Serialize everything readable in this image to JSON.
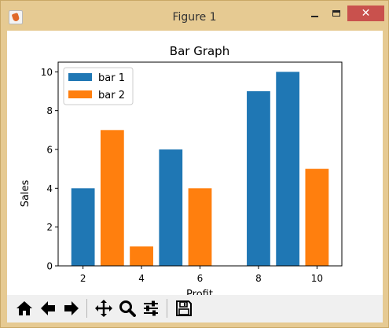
{
  "window": {
    "title": "Figure 1"
  },
  "icons": {
    "app": "matplotlib-figure-icon",
    "minimize": "minimize-icon",
    "maximize": "maximize-icon",
    "close": "close-icon"
  },
  "toolbar": {
    "buttons": [
      {
        "name": "home",
        "icon": "home-icon"
      },
      {
        "name": "back",
        "icon": "arrow-left-icon"
      },
      {
        "name": "forward",
        "icon": "arrow-right-icon"
      },
      {
        "name": "pan",
        "icon": "move-icon"
      },
      {
        "name": "zoom",
        "icon": "magnifier-icon"
      },
      {
        "name": "configure",
        "icon": "sliders-icon"
      },
      {
        "name": "save",
        "icon": "floppy-icon"
      }
    ]
  },
  "chart_data": {
    "type": "bar",
    "title": "Bar Graph",
    "xlabel": "Profit",
    "ylabel": "Sales",
    "xlim": [
      1.15,
      10.85
    ],
    "ylim": [
      0,
      10.5
    ],
    "xticks": [
      2,
      4,
      6,
      8,
      10
    ],
    "yticks": [
      0,
      2,
      4,
      6,
      8,
      10
    ],
    "bar_width": 0.8,
    "legend_position": "top-left",
    "grid": false,
    "series": [
      {
        "name": "bar 1",
        "color": "#1f77b4",
        "x": [
          2,
          5,
          8,
          9
        ],
        "values": [
          4,
          6,
          9,
          10
        ]
      },
      {
        "name": "bar 2",
        "color": "#ff7f0e",
        "x": [
          3,
          4,
          6,
          10
        ],
        "values": [
          7,
          1,
          4,
          5
        ]
      }
    ]
  }
}
